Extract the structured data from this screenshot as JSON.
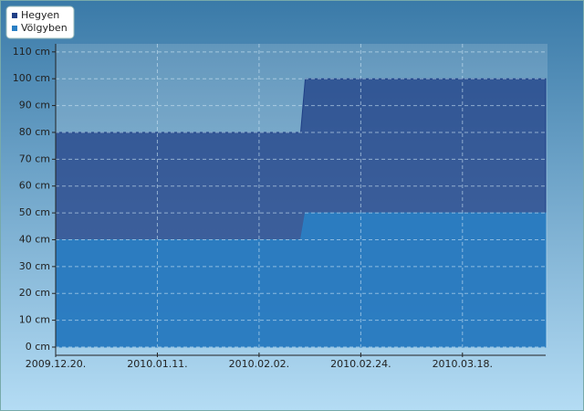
{
  "chart_data": {
    "type": "area",
    "x": [
      "2009.12.20.",
      "2010.02.11.",
      "2010.02.12.",
      "2010.04.05."
    ],
    "series": [
      {
        "name": "Hegyen",
        "color": "#1f3f86",
        "values": [
          80,
          80,
          100,
          100
        ]
      },
      {
        "name": "Völgyben",
        "color": "#2a7fc4",
        "values": [
          40,
          40,
          50,
          50
        ]
      }
    ],
    "xlim": [
      "2009.12.20.",
      "2010.04.05."
    ],
    "xticks": [
      "2009.12.20.",
      "2010.01.11.",
      "2010.02.02.",
      "2010.02.24.",
      "2010.03.18."
    ],
    "ylim": [
      0,
      113
    ],
    "yticks": [
      {
        "value": 0,
        "label": "0 cm"
      },
      {
        "value": 10,
        "label": "10 cm"
      },
      {
        "value": 20,
        "label": "20 cm"
      },
      {
        "value": 30,
        "label": "30 cm"
      },
      {
        "value": 40,
        "label": "40 cm"
      },
      {
        "value": 50,
        "label": "50 cm"
      },
      {
        "value": 60,
        "label": "60 cm"
      },
      {
        "value": 70,
        "label": "70 cm"
      },
      {
        "value": 80,
        "label": "80 cm"
      },
      {
        "value": 90,
        "label": "90 cm"
      },
      {
        "value": 100,
        "label": "100 cm"
      },
      {
        "value": 110,
        "label": "110 cm"
      }
    ],
    "grid": true,
    "legend": "top-left"
  }
}
